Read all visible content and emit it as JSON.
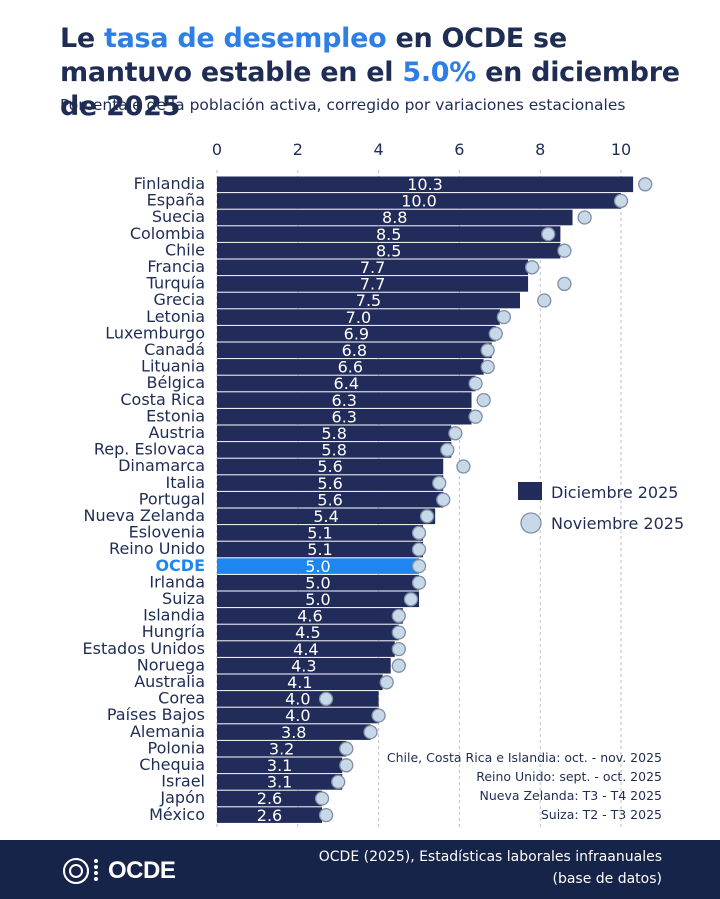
{
  "title": {
    "p1": "Le ",
    "p2": "tasa de desempleo",
    "p3": " en OCDE se mantuvo estable en el ",
    "p4": "5.0%",
    "p5": " en diciembre de 2025"
  },
  "subtitle": "Porcentaje de la población activa, corregido por variaciones estacionales",
  "notes": [
    "Chile, Costa Rica e Islandia: oct. - nov. 2025",
    "Reino Unido: sept. - oct. 2025",
    "Nueva Zelanda: T3 - T4 2025",
    "Suiza: T2 - T3 2025"
  ],
  "footer": {
    "logo": "OCDE",
    "source_line1": "OCDE (2025), Estadísticas laborales infraanuales",
    "source_line2": "(base de datos)"
  },
  "colors": {
    "bar": "#222c5a",
    "highlight": "#1e86f0",
    "marker_fill": "#c7d8e8",
    "marker_stroke": "#7f8ea3",
    "title_accent": "#2d7fe3",
    "footer_bg": "#172449"
  },
  "chart_data": {
    "type": "bar",
    "orientation": "horizontal",
    "xlim": [
      0,
      10.5
    ],
    "xticks": [
      0,
      2,
      4,
      6,
      8,
      10
    ],
    "grid": true,
    "legend_position": "right",
    "highlight_category": "OCDE",
    "categories": [
      "Finlandia",
      "España",
      "Suecia",
      "Colombia",
      "Chile",
      "Francia",
      "Turquía",
      "Grecia",
      "Letonia",
      "Luxemburgo",
      "Canadá",
      "Lituania",
      "Bélgica",
      "Costa Rica",
      "Estonia",
      "Austria",
      "Rep. Eslovaca",
      "Dinamarca",
      "Italia",
      "Portugal",
      "Nueva Zelanda",
      "Eslovenia",
      "Reino Unido",
      "OCDE",
      "Irlanda",
      "Suiza",
      "Islandia",
      "Hungría",
      "Estados Unidos",
      "Noruega",
      "Australia",
      "Corea",
      "Países Bajos",
      "Alemania",
      "Polonia",
      "Chequia",
      "Israel",
      "Japón",
      "México"
    ],
    "series": [
      {
        "name": "Diciembre 2025",
        "type": "bar",
        "values": [
          10.3,
          10.0,
          8.8,
          8.5,
          8.5,
          7.7,
          7.7,
          7.5,
          7.0,
          6.9,
          6.8,
          6.6,
          6.4,
          6.3,
          6.3,
          5.8,
          5.8,
          5.6,
          5.6,
          5.6,
          5.4,
          5.1,
          5.1,
          5.0,
          5.0,
          5.0,
          4.6,
          4.5,
          4.4,
          4.3,
          4.1,
          4.0,
          4.0,
          3.8,
          3.2,
          3.1,
          3.1,
          2.6,
          2.6
        ]
      },
      {
        "name": "Noviembre 2025",
        "type": "marker",
        "values": [
          10.6,
          10.0,
          9.1,
          8.2,
          8.6,
          7.8,
          8.6,
          8.1,
          7.1,
          6.9,
          6.7,
          6.7,
          6.4,
          6.6,
          6.4,
          5.9,
          5.7,
          6.1,
          5.5,
          5.6,
          5.2,
          5.0,
          5.0,
          5.0,
          5.0,
          4.8,
          4.5,
          4.5,
          4.5,
          4.5,
          4.2,
          2.7,
          4.0,
          3.8,
          3.2,
          3.2,
          3.0,
          2.6,
          2.7
        ]
      }
    ]
  }
}
